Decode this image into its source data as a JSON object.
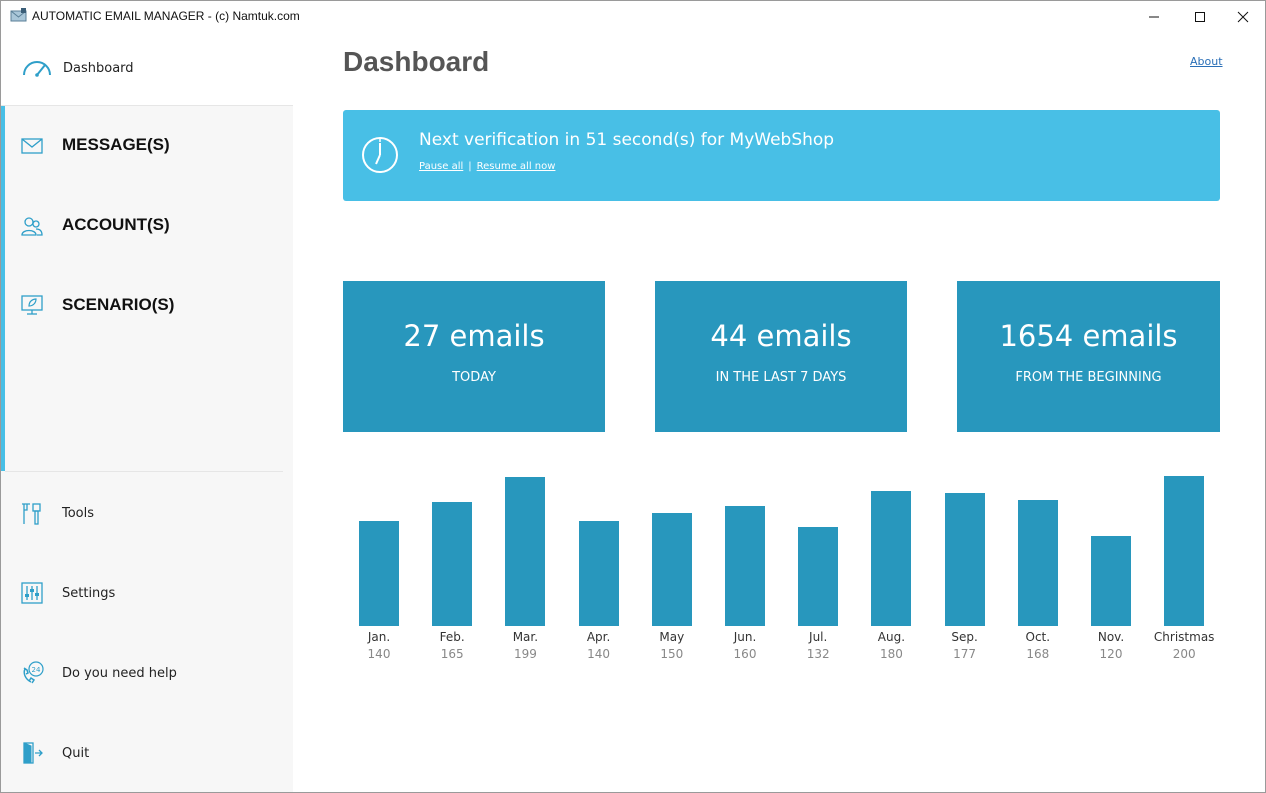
{
  "window": {
    "title": "AUTOMATIC EMAIL MANAGER - (c) Namtuk.com"
  },
  "sidebar": {
    "dashboard_label": "Dashboard",
    "main_items": [
      {
        "label": "MESSAGE(S)",
        "icon": "envelope-icon"
      },
      {
        "label": "ACCOUNT(S)",
        "icon": "users-icon"
      },
      {
        "label": "SCENARIO(S)",
        "icon": "monitor-leaf-icon"
      }
    ],
    "sub_items": [
      {
        "label": "Tools",
        "icon": "tools-icon"
      },
      {
        "label": "Settings",
        "icon": "settings-sliders-icon"
      },
      {
        "label": "Do you need help",
        "icon": "support-24-icon"
      },
      {
        "label": "Quit",
        "icon": "exit-door-icon"
      }
    ]
  },
  "main": {
    "title": "Dashboard",
    "about_label": "About",
    "banner": {
      "message": "Next verification in 51 second(s) for MyWebShop",
      "pause_label": "Pause all",
      "resume_label": "Resume all now"
    },
    "stats": [
      {
        "value": "27 emails",
        "caption": "TODAY"
      },
      {
        "value": "44 emails",
        "caption": "IN THE LAST 7 DAYS"
      },
      {
        "value": "1654 emails",
        "caption": "FROM THE BEGINNING"
      }
    ]
  },
  "colors": {
    "accent": "#48bfe6",
    "card": "#2897bd"
  },
  "chart_data": {
    "type": "bar",
    "categories": [
      "Jan.",
      "Feb.",
      "Mar.",
      "Apr.",
      "May",
      "Jun.",
      "Jul.",
      "Aug.",
      "Sep.",
      "Oct.",
      "Nov.",
      "Christmas"
    ],
    "values": [
      140,
      165,
      199,
      140,
      150,
      160,
      132,
      180,
      177,
      168,
      120,
      200
    ],
    "ylim": [
      0,
      200
    ],
    "grid": false
  }
}
